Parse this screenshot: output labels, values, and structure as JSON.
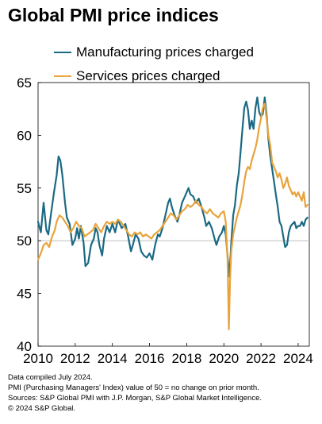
{
  "title": "Global PMI price indices",
  "colors": {
    "manufacturing": "#1b6a84",
    "services": "#e8a33a",
    "baseline": "#000000",
    "gridline": "#bfbfbf"
  },
  "chart_data": {
    "type": "line",
    "title": "Global PMI price indices",
    "xlabel": "",
    "ylabel": "",
    "xlim": [
      2010.0,
      2024.6
    ],
    "ylim": [
      40,
      65
    ],
    "x_ticks": [
      2010,
      2012,
      2014,
      2016,
      2018,
      2020,
      2022,
      2024
    ],
    "y_ticks": [
      40,
      45,
      50,
      55,
      60,
      65
    ],
    "reference_line": 50,
    "grid": false,
    "legend_position": "top-left",
    "series": [
      {
        "name": "Manufacturing prices charged",
        "color": "#1b6a84",
        "points": [
          [
            2010.0,
            51.8
          ],
          [
            2010.15,
            50.8
          ],
          [
            2010.3,
            53.6
          ],
          [
            2010.45,
            51.0
          ],
          [
            2010.55,
            50.6
          ],
          [
            2010.7,
            52.6
          ],
          [
            2010.85,
            54.5
          ],
          [
            2011.0,
            56.2
          ],
          [
            2011.1,
            58.0
          ],
          [
            2011.2,
            57.6
          ],
          [
            2011.3,
            56.3
          ],
          [
            2011.45,
            53.6
          ],
          [
            2011.55,
            52.2
          ],
          [
            2011.7,
            51.6
          ],
          [
            2011.85,
            49.6
          ],
          [
            2012.0,
            50.2
          ],
          [
            2012.1,
            51.2
          ],
          [
            2012.2,
            50.2
          ],
          [
            2012.3,
            51.4
          ],
          [
            2012.45,
            49.8
          ],
          [
            2012.55,
            47.6
          ],
          [
            2012.7,
            47.9
          ],
          [
            2012.85,
            49.6
          ],
          [
            2013.0,
            50.2
          ],
          [
            2013.1,
            51.2
          ],
          [
            2013.2,
            50.8
          ],
          [
            2013.3,
            49.6
          ],
          [
            2013.45,
            48.6
          ],
          [
            2013.55,
            50.2
          ],
          [
            2013.7,
            51.4
          ],
          [
            2013.85,
            50.8
          ],
          [
            2014.0,
            51.6
          ],
          [
            2014.15,
            50.8
          ],
          [
            2014.3,
            52.0
          ],
          [
            2014.5,
            51.2
          ],
          [
            2014.7,
            51.6
          ],
          [
            2014.85,
            50.4
          ],
          [
            2015.0,
            49.0
          ],
          [
            2015.1,
            49.6
          ],
          [
            2015.25,
            50.6
          ],
          [
            2015.4,
            50.2
          ],
          [
            2015.55,
            49.0
          ],
          [
            2015.7,
            48.6
          ],
          [
            2015.85,
            48.4
          ],
          [
            2016.0,
            48.8
          ],
          [
            2016.15,
            48.2
          ],
          [
            2016.3,
            49.6
          ],
          [
            2016.45,
            50.6
          ],
          [
            2016.55,
            50.4
          ],
          [
            2016.7,
            51.2
          ],
          [
            2016.85,
            52.4
          ],
          [
            2017.0,
            53.6
          ],
          [
            2017.1,
            54.0
          ],
          [
            2017.2,
            53.2
          ],
          [
            2017.35,
            52.4
          ],
          [
            2017.5,
            51.8
          ],
          [
            2017.6,
            52.4
          ],
          [
            2017.75,
            53.6
          ],
          [
            2017.9,
            54.2
          ],
          [
            2018.0,
            54.6
          ],
          [
            2018.1,
            55.0
          ],
          [
            2018.2,
            54.4
          ],
          [
            2018.35,
            54.2
          ],
          [
            2018.5,
            53.6
          ],
          [
            2018.65,
            54.0
          ],
          [
            2018.8,
            53.2
          ],
          [
            2018.95,
            52.2
          ],
          [
            2019.05,
            51.4
          ],
          [
            2019.2,
            51.8
          ],
          [
            2019.35,
            51.2
          ],
          [
            2019.5,
            50.2
          ],
          [
            2019.6,
            49.6
          ],
          [
            2019.75,
            50.4
          ],
          [
            2019.9,
            50.8
          ],
          [
            2020.0,
            51.4
          ],
          [
            2020.1,
            50.6
          ],
          [
            2020.2,
            48.6
          ],
          [
            2020.3,
            46.6
          ],
          [
            2020.4,
            49.8
          ],
          [
            2020.5,
            52.4
          ],
          [
            2020.6,
            53.4
          ],
          [
            2020.7,
            55.2
          ],
          [
            2020.8,
            56.4
          ],
          [
            2020.9,
            58.4
          ],
          [
            2021.0,
            60.6
          ],
          [
            2021.1,
            62.6
          ],
          [
            2021.2,
            63.2
          ],
          [
            2021.3,
            62.4
          ],
          [
            2021.4,
            60.6
          ],
          [
            2021.5,
            61.4
          ],
          [
            2021.6,
            60.6
          ],
          [
            2021.7,
            62.6
          ],
          [
            2021.8,
            63.6
          ],
          [
            2021.9,
            62.2
          ],
          [
            2022.0,
            61.8
          ],
          [
            2022.1,
            62.0
          ],
          [
            2022.2,
            63.6
          ],
          [
            2022.3,
            62.0
          ],
          [
            2022.4,
            59.6
          ],
          [
            2022.5,
            58.0
          ],
          [
            2022.6,
            56.8
          ],
          [
            2022.7,
            55.6
          ],
          [
            2022.8,
            54.4
          ],
          [
            2022.9,
            53.2
          ],
          [
            2023.0,
            51.8
          ],
          [
            2023.1,
            51.4
          ],
          [
            2023.2,
            50.4
          ],
          [
            2023.3,
            49.4
          ],
          [
            2023.4,
            49.6
          ],
          [
            2023.5,
            50.8
          ],
          [
            2023.6,
            51.4
          ],
          [
            2023.7,
            51.6
          ],
          [
            2023.8,
            51.8
          ],
          [
            2023.9,
            51.2
          ],
          [
            2024.0,
            51.4
          ],
          [
            2024.1,
            51.4
          ],
          [
            2024.2,
            51.8
          ],
          [
            2024.3,
            51.4
          ],
          [
            2024.4,
            52.0
          ],
          [
            2024.5,
            52.2
          ]
        ]
      },
      {
        "name": "Services prices charged",
        "color": "#e8a33a",
        "points": [
          [
            2010.0,
            48.2
          ],
          [
            2010.15,
            48.8
          ],
          [
            2010.3,
            49.6
          ],
          [
            2010.45,
            49.8
          ],
          [
            2010.6,
            49.4
          ],
          [
            2010.75,
            50.4
          ],
          [
            2010.9,
            51.0
          ],
          [
            2011.0,
            51.8
          ],
          [
            2011.15,
            52.4
          ],
          [
            2011.3,
            52.2
          ],
          [
            2011.45,
            51.8
          ],
          [
            2011.6,
            51.4
          ],
          [
            2011.75,
            50.8
          ],
          [
            2011.9,
            51.2
          ],
          [
            2012.05,
            51.8
          ],
          [
            2012.2,
            51.4
          ],
          [
            2012.35,
            51.2
          ],
          [
            2012.5,
            50.4
          ],
          [
            2012.65,
            50.6
          ],
          [
            2012.8,
            50.8
          ],
          [
            2012.95,
            51.0
          ],
          [
            2013.1,
            51.6
          ],
          [
            2013.25,
            51.2
          ],
          [
            2013.4,
            50.8
          ],
          [
            2013.55,
            51.4
          ],
          [
            2013.7,
            51.8
          ],
          [
            2013.85,
            51.6
          ],
          [
            2014.0,
            51.8
          ],
          [
            2014.15,
            51.6
          ],
          [
            2014.3,
            52.0
          ],
          [
            2014.45,
            51.8
          ],
          [
            2014.6,
            51.4
          ],
          [
            2014.75,
            51.0
          ],
          [
            2014.9,
            50.6
          ],
          [
            2015.05,
            50.4
          ],
          [
            2015.2,
            50.8
          ],
          [
            2015.35,
            50.6
          ],
          [
            2015.5,
            50.8
          ],
          [
            2015.65,
            50.4
          ],
          [
            2015.8,
            50.6
          ],
          [
            2015.95,
            50.4
          ],
          [
            2016.1,
            50.2
          ],
          [
            2016.25,
            50.6
          ],
          [
            2016.4,
            50.8
          ],
          [
            2016.55,
            51.0
          ],
          [
            2016.7,
            51.4
          ],
          [
            2016.85,
            51.8
          ],
          [
            2017.0,
            52.2
          ],
          [
            2017.15,
            52.6
          ],
          [
            2017.3,
            52.4
          ],
          [
            2017.45,
            52.0
          ],
          [
            2017.6,
            52.4
          ],
          [
            2017.75,
            52.8
          ],
          [
            2017.9,
            53.0
          ],
          [
            2018.05,
            53.4
          ],
          [
            2018.2,
            53.2
          ],
          [
            2018.35,
            53.4
          ],
          [
            2018.5,
            53.8
          ],
          [
            2018.65,
            53.4
          ],
          [
            2018.8,
            53.2
          ],
          [
            2018.95,
            52.8
          ],
          [
            2019.1,
            52.6
          ],
          [
            2019.25,
            53.0
          ],
          [
            2019.4,
            52.6
          ],
          [
            2019.55,
            52.4
          ],
          [
            2019.7,
            52.2
          ],
          [
            2019.85,
            52.6
          ],
          [
            2020.0,
            52.8
          ],
          [
            2020.1,
            51.8
          ],
          [
            2020.2,
            48.2
          ],
          [
            2020.27,
            41.6
          ],
          [
            2020.33,
            46.2
          ],
          [
            2020.4,
            49.0
          ],
          [
            2020.5,
            50.6
          ],
          [
            2020.6,
            51.4
          ],
          [
            2020.7,
            52.2
          ],
          [
            2020.8,
            52.8
          ],
          [
            2020.9,
            53.4
          ],
          [
            2021.0,
            54.4
          ],
          [
            2021.1,
            55.6
          ],
          [
            2021.2,
            56.6
          ],
          [
            2021.3,
            57.0
          ],
          [
            2021.4,
            56.8
          ],
          [
            2021.5,
            57.6
          ],
          [
            2021.6,
            58.2
          ],
          [
            2021.7,
            58.8
          ],
          [
            2021.8,
            59.6
          ],
          [
            2021.9,
            60.8
          ],
          [
            2022.0,
            61.6
          ],
          [
            2022.1,
            62.6
          ],
          [
            2022.2,
            63.0
          ],
          [
            2022.3,
            61.6
          ],
          [
            2022.4,
            60.0
          ],
          [
            2022.5,
            59.0
          ],
          [
            2022.6,
            57.4
          ],
          [
            2022.7,
            57.0
          ],
          [
            2022.8,
            56.6
          ],
          [
            2022.9,
            56.0
          ],
          [
            2023.0,
            56.4
          ],
          [
            2023.1,
            55.8
          ],
          [
            2023.2,
            55.0
          ],
          [
            2023.3,
            55.4
          ],
          [
            2023.4,
            56.0
          ],
          [
            2023.5,
            55.2
          ],
          [
            2023.6,
            54.8
          ],
          [
            2023.7,
            54.4
          ],
          [
            2023.8,
            54.6
          ],
          [
            2023.9,
            54.2
          ],
          [
            2024.0,
            54.6
          ],
          [
            2024.1,
            54.2
          ],
          [
            2024.2,
            53.8
          ],
          [
            2024.3,
            54.6
          ],
          [
            2024.4,
            53.2
          ],
          [
            2024.5,
            53.4
          ]
        ]
      }
    ]
  },
  "notes": [
    "Data compiled July 2024.",
    "PMI (Purchasing Managers' Index) value of 50 = no change on prior month.",
    "Sources: S&P Global PMI with J.P. Morgan, S&P Global Market Intelligence.",
    "© 2024 S&P Global."
  ]
}
